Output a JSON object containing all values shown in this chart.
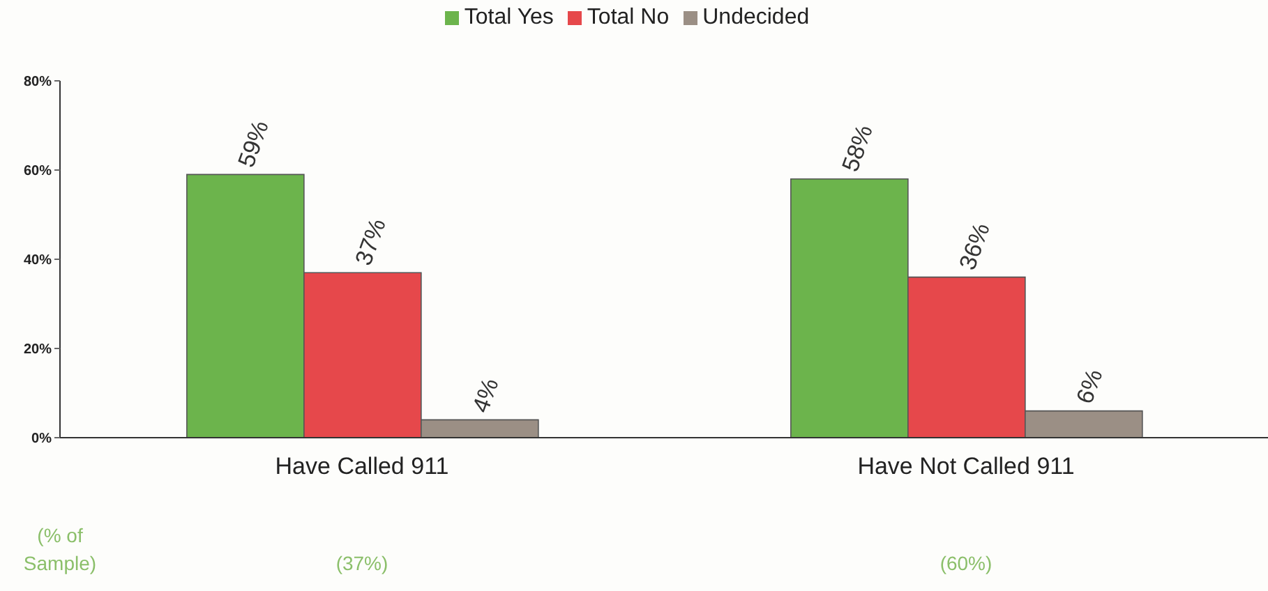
{
  "chart_data": {
    "type": "bar",
    "categories": [
      "Have Called 911",
      "Have Not Called 911"
    ],
    "series": [
      {
        "name": "Total Yes",
        "color": "#6cb44c",
        "values": [
          59,
          58
        ],
        "value_labels": [
          "59%",
          "58%"
        ]
      },
      {
        "name": "Total No",
        "color": "#e6484b",
        "values": [
          37,
          36
        ],
        "value_labels": [
          "37%",
          "36%"
        ]
      },
      {
        "name": "Undecided",
        "color": "#9b8f85",
        "values": [
          4,
          6
        ],
        "value_labels": [
          "4%",
          "6%"
        ]
      }
    ],
    "ylim": [
      0,
      80
    ],
    "yticks": [
      {
        "value": 0,
        "label": "0%"
      },
      {
        "value": 20,
        "label": "20%"
      },
      {
        "value": 40,
        "label": "40%"
      },
      {
        "value": 60,
        "label": "60%"
      },
      {
        "value": 80,
        "label": "80%"
      }
    ],
    "grid": false,
    "legend": "top",
    "annotations": [
      "(% of Sample)",
      "(37%)",
      "(60%)"
    ]
  }
}
